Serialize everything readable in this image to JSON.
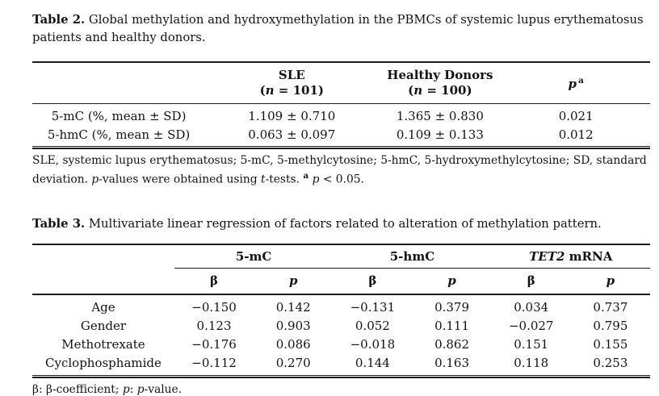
{
  "page": {
    "background": "#ffffff",
    "text_color": "#131313",
    "rule_color": "#1d1d1d"
  },
  "table2": {
    "caption_segments": [
      {
        "t": "Table 2.",
        "b": true
      },
      {
        "t": " Global methylation and hydroxymethylation in the PBMCs of systemic lupus erythematosus patients and healthy donors."
      }
    ],
    "header": {
      "sle": {
        "name": "SLE",
        "n_open": "(",
        "n": "n",
        "n_rest": " = 101)"
      },
      "healthy": {
        "name": "Healthy Donors",
        "n_open": "(",
        "n": "n",
        "n_rest": " = 100)"
      },
      "p": {
        "p": "p",
        "sup": "a"
      }
    },
    "rows": [
      {
        "label": "5-mC (%, mean ± SD)",
        "sle": "1.109 ± 0.710",
        "healthy": "1.365 ± 0.830",
        "p": "0.021"
      },
      {
        "label": "5-hmC (%, mean ± SD)",
        "sle": "0.063 ± 0.097",
        "healthy": "0.109 ± 0.133",
        "p": "0.012"
      }
    ],
    "footnote_segments": [
      {
        "t": "SLE, systemic lupus erythematosus; 5-mC, 5-methylcytosine; 5-hmC, 5-hydroxymethylcytosine; SD, standard deviation. "
      },
      {
        "t": "p",
        "i": true
      },
      {
        "t": "-values were obtained using "
      },
      {
        "t": "t",
        "i": true
      },
      {
        "t": "-tests. "
      },
      {
        "t": "a",
        "sup": true
      },
      {
        "t": " "
      },
      {
        "t": "p",
        "i": true
      },
      {
        "t": " < 0.05."
      }
    ]
  },
  "table3": {
    "caption_segments": [
      {
        "t": "Table 3.",
        "b": true
      },
      {
        "t": " Multivariate linear regression of factors related to alteration of methylation pattern."
      }
    ],
    "groups": [
      {
        "segments": [
          {
            "t": "5-mC"
          }
        ]
      },
      {
        "segments": [
          {
            "t": "5-hmC"
          }
        ]
      },
      {
        "segments": [
          {
            "t": "TET2",
            "i": true
          },
          {
            "t": " mRNA"
          }
        ]
      }
    ],
    "subheaders": {
      "beta": "β",
      "p": "p"
    },
    "rows": [
      {
        "label": "Age",
        "values": [
          "−0.150",
          "0.142",
          "−0.131",
          "0.379",
          "0.034",
          "0.737"
        ]
      },
      {
        "label": "Gender",
        "values": [
          "0.123",
          "0.903",
          "0.052",
          "0.111",
          "−0.027",
          "0.795"
        ]
      },
      {
        "label": "Methotrexate",
        "values": [
          "−0.176",
          "0.086",
          "−0.018",
          "0.862",
          "0.151",
          "0.155"
        ]
      },
      {
        "label": "Cyclophosphamide",
        "values": [
          "−0.112",
          "0.270",
          "0.144",
          "0.163",
          "0.118",
          "0.253"
        ]
      }
    ],
    "footnote_segments": [
      {
        "t": "β: β-coefficient; "
      },
      {
        "t": "p",
        "i": true
      },
      {
        "t": ": "
      },
      {
        "t": "p",
        "i": true
      },
      {
        "t": "-value."
      }
    ]
  }
}
